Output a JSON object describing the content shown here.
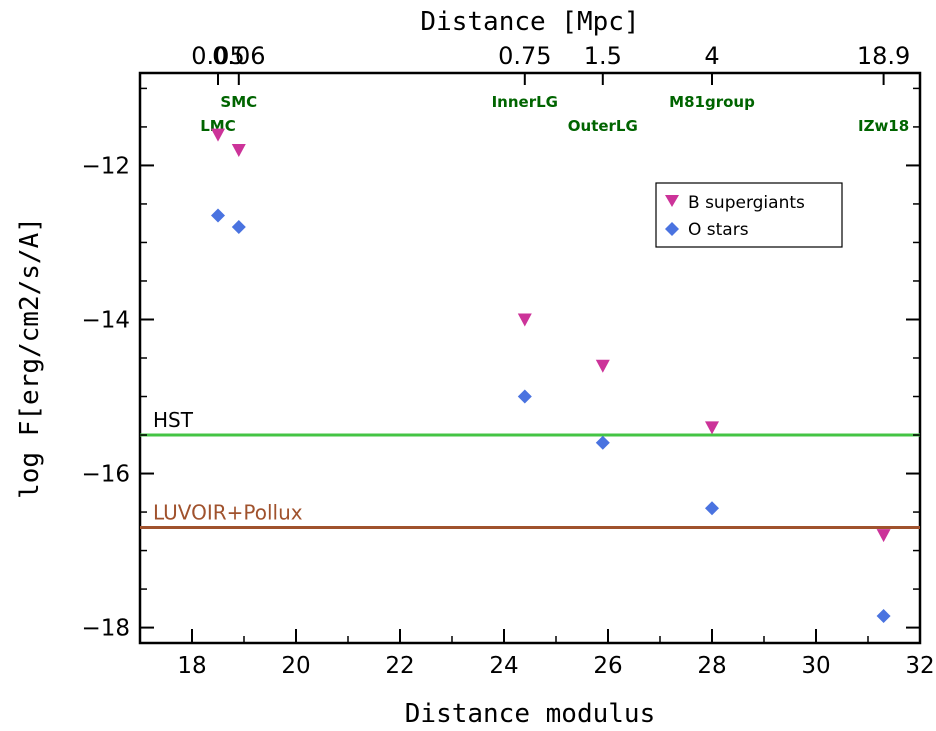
{
  "chart_data": {
    "type": "scatter",
    "title": "",
    "xlabel": "Distance modulus",
    "ylabel": "log F[erg/cm2/s/A]",
    "top_xlabel": "Distance [Mpc]",
    "xlim": [
      17,
      32
    ],
    "ylim": [
      -18.2,
      -10.8
    ],
    "x_ticks": [
      18,
      20,
      22,
      24,
      26,
      28,
      30,
      32
    ],
    "x_tick_labels": [
      "18",
      "20",
      "22",
      "24",
      "26",
      "28",
      "30",
      "32"
    ],
    "y_ticks": [
      -18,
      -16,
      -14,
      -12
    ],
    "y_tick_labels": [
      "−18",
      "−16",
      "−14",
      "−12"
    ],
    "top_axis": [
      {
        "label": "0.05",
        "x": 18.5
      },
      {
        "label": "0.06",
        "x": 18.9
      },
      {
        "label": "0.75",
        "x": 24.4
      },
      {
        "label": "1.5",
        "x": 25.9
      },
      {
        "label": "4",
        "x": 28.0
      },
      {
        "label": "18.9",
        "x": 31.3
      }
    ],
    "galaxies": [
      {
        "name": "LMC",
        "x": 18.5,
        "row": "lower"
      },
      {
        "name": "SMC",
        "x": 18.9,
        "row": "upper"
      },
      {
        "name": "InnerLG",
        "x": 24.4,
        "row": "upper"
      },
      {
        "name": "OuterLG",
        "x": 25.9,
        "row": "lower"
      },
      {
        "name": "M81group",
        "x": 28.0,
        "row": "upper"
      },
      {
        "name": "IZw18",
        "x": 31.3,
        "row": "lower"
      }
    ],
    "series": [
      {
        "name": "B supergiants",
        "marker": "triangle-down",
        "color": "#cc3399",
        "x": [
          18.5,
          18.9,
          24.4,
          25.9,
          28.0,
          31.3
        ],
        "y": [
          -11.6,
          -11.8,
          -14.0,
          -14.6,
          -15.4,
          -16.8
        ]
      },
      {
        "name": "O stars",
        "marker": "diamond",
        "color": "#4a73e0",
        "x": [
          18.5,
          18.9,
          24.4,
          25.9,
          28.0,
          31.3
        ],
        "y": [
          -12.65,
          -12.8,
          -15.0,
          -15.6,
          -16.45,
          -17.85
        ]
      }
    ],
    "reference_lines": [
      {
        "label": "HST",
        "y": -15.5,
        "color": "#44c444",
        "label_color": "#000000"
      },
      {
        "label": "LUVOIR+Pollux",
        "y": -16.7,
        "color": "#a0522d",
        "label_color": "#a0522d"
      }
    ],
    "legend_position": "upper-right",
    "galaxy_label_color": "#006400",
    "grid": false
  }
}
